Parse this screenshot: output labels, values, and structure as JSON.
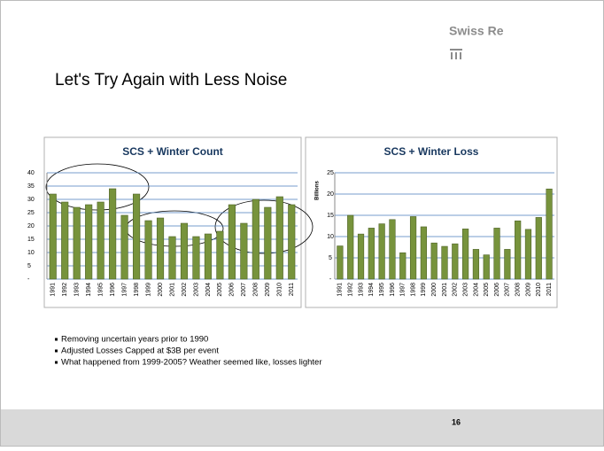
{
  "logo": "Swiss Re",
  "title": "Let's Try Again with Less Noise",
  "chart_data": [
    {
      "type": "bar",
      "title": "SCS + Winter Count",
      "color": "#77933c",
      "categories": [
        "1991",
        "1992",
        "1993",
        "1994",
        "1995",
        "1996",
        "1997",
        "1998",
        "1999",
        "2000",
        "2001",
        "2002",
        "2003",
        "2004",
        "2005",
        "2006",
        "2007",
        "2008",
        "2009",
        "2010",
        "2011"
      ],
      "values": [
        32,
        29,
        27,
        28,
        29,
        34,
        24,
        32,
        22,
        23,
        16,
        21,
        16,
        17,
        18,
        28,
        21,
        30,
        27,
        31,
        28
      ],
      "ylim": [
        0,
        40
      ],
      "yticks": [
        {
          "value": 0,
          "label": "-"
        },
        5,
        10,
        15,
        20,
        25,
        30,
        35,
        40
      ],
      "grid": true
    },
    {
      "type": "bar",
      "title": "SCS + Winter Loss",
      "ylabel": "Billions",
      "color": "#77933c",
      "categories": [
        "1991",
        "1992",
        "1993",
        "1994",
        "1995",
        "1996",
        "1997",
        "1998",
        "1999",
        "2000",
        "2001",
        "2002",
        "2003",
        "2004",
        "2005",
        "2006",
        "2007",
        "2008",
        "2009",
        "2010",
        "2011"
      ],
      "values": [
        7.8,
        15,
        10.6,
        12,
        13,
        14,
        6.2,
        14.7,
        12.3,
        8.5,
        7.7,
        8.3,
        11.8,
        7,
        5.7,
        12,
        7,
        13.7,
        11.7,
        14.5,
        21.2
      ],
      "ylim": [
        0,
        25
      ],
      "yticks": [
        {
          "value": 0,
          "label": "-"
        },
        5,
        10,
        15,
        20,
        25
      ],
      "grid": true
    }
  ],
  "bullets": [
    "Removing uncertain years prior to 1990",
    "Adjusted Losses Capped at $3B per event",
    "What happened  from 1999-2005?  Weather seemed like, losses lighter"
  ],
  "page_number": "16"
}
